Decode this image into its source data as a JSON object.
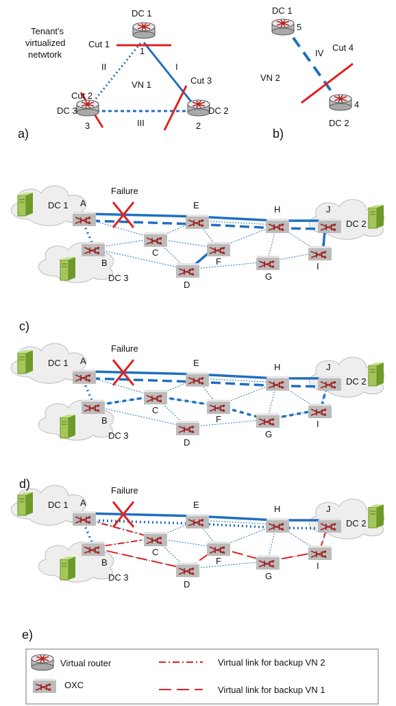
{
  "panel_a": {
    "tenant_label": [
      "Tenant's",
      "virtualized",
      "netwtork"
    ],
    "dc1": "DC 1",
    "dc2": "DC 2",
    "dc3": "DC 3",
    "n1": "1",
    "n2": "2",
    "n3": "3",
    "vn": "VN 1",
    "links": {
      "I": "I",
      "II": "II",
      "III": "III"
    },
    "cut1": "Cut 1",
    "cut2": "Cut 2",
    "cut3": "Cut 3",
    "label": "a)"
  },
  "panel_b": {
    "dc1": "DC 1",
    "dc2": "DC 2",
    "n5": "5",
    "n4": "4",
    "link": "IV",
    "vn": "VN 2",
    "cut4": "Cut 4",
    "label": "b)"
  },
  "network": {
    "failure": "Failure",
    "dc1": "DC 1",
    "dc2": "DC 2",
    "dc3": "DC 3",
    "nodes": {
      "A": "A",
      "B": "B",
      "C": "C",
      "D": "D",
      "E": "E",
      "F": "F",
      "G": "G",
      "H": "H",
      "I": "I",
      "J": "J"
    }
  },
  "panel_labels": {
    "c": "c)",
    "d": "d)",
    "e": "e)"
  },
  "legend": {
    "virtual_router": "Virtual router",
    "oxc": "OXC",
    "backup_vn2": "Virtual link for backup VN 2",
    "backup_vn1": "Virtual link for backup VN 1"
  },
  "colors": {
    "blue": "#1f6fc0",
    "red": "#e02020"
  }
}
